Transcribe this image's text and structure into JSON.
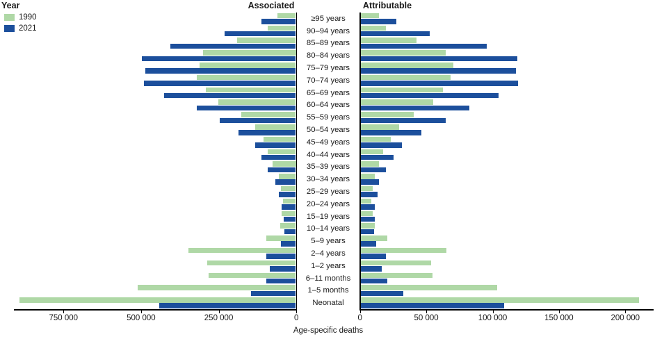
{
  "legend": {
    "title": "Year",
    "items": [
      {
        "label": "1990",
        "color": "#AFD8A6"
      },
      {
        "label": "2021",
        "color": "#1C4F9C"
      }
    ]
  },
  "titles": {
    "associated": "Associated",
    "attributable": "Attributable"
  },
  "xlabel": "Age-specific deaths",
  "chart_data": {
    "type": "bar",
    "variant": "horizontal-diverging-pyramid",
    "title": "",
    "xlabel": "Age-specific deaths",
    "legend_position": "top-left",
    "grid": false,
    "categories": [
      "≥95 years",
      "90–94 years",
      "85–89 years",
      "80–84 years",
      "75–79 years",
      "70–74 years",
      "65–69 years",
      "60–64 years",
      "55–59 years",
      "50–54 years",
      "45–49 years",
      "40–44 years",
      "35–39 years",
      "30–34 years",
      "25–29 years",
      "20–24 years",
      "15–19 years",
      "10–14 years",
      "5–9 years",
      "2–4 years",
      "1–2 years",
      "6–11 months",
      "1–5 months",
      "Neonatal"
    ],
    "panels": [
      {
        "side": "left",
        "title": "Associated",
        "axis_max": 900000,
        "ticks": [
          {
            "value": 750000,
            "label": "750 000"
          },
          {
            "value": 500000,
            "label": "500 000"
          },
          {
            "value": 250000,
            "label": "250 000"
          },
          {
            "value": 0,
            "label": "0"
          }
        ],
        "series": [
          {
            "name": "1990",
            "color": "#AFD8A6",
            "values": [
              60000,
              90000,
              190000,
              300000,
              310000,
              320000,
              290000,
              250000,
              175000,
              130000,
              105000,
              90000,
              75000,
              55000,
              48000,
              42000,
              45000,
              50000,
              95000,
              345000,
              285000,
              280000,
              510000,
              890000
            ]
          },
          {
            "name": "2021",
            "color": "#1C4F9C",
            "values": [
              110000,
              230000,
              405000,
              495000,
              485000,
              490000,
              425000,
              320000,
              245000,
              185000,
              130000,
              110000,
              90000,
              65000,
              55000,
              45000,
              40000,
              38000,
              48000,
              95000,
              85000,
              95000,
              145000,
              440000
            ]
          }
        ]
      },
      {
        "side": "right",
        "title": "Attributable",
        "axis_max": 220000,
        "ticks": [
          {
            "value": 0,
            "label": "0"
          },
          {
            "value": 50000,
            "label": "50 000"
          },
          {
            "value": 100000,
            "label": "100 000"
          },
          {
            "value": 150000,
            "label": "150 000"
          },
          {
            "value": 200000,
            "label": "200 000"
          }
        ],
        "series": [
          {
            "name": "1990",
            "color": "#AFD8A6",
            "values": [
              14000,
              19000,
              42000,
              64000,
              70000,
              68000,
              62000,
              55000,
              40000,
              29000,
              23000,
              17000,
              14000,
              11000,
              9000,
              8000,
              9000,
              11000,
              20000,
              65000,
              53000,
              54000,
              103000,
              210000
            ]
          },
          {
            "name": "2021",
            "color": "#1C4F9C",
            "values": [
              27000,
              52000,
              95000,
              118000,
              117000,
              119000,
              104000,
              82000,
              64000,
              46000,
              31000,
              25000,
              19000,
              14000,
              13000,
              11000,
              11000,
              10000,
              12000,
              19000,
              16000,
              20000,
              32000,
              108000
            ]
          }
        ]
      }
    ]
  }
}
